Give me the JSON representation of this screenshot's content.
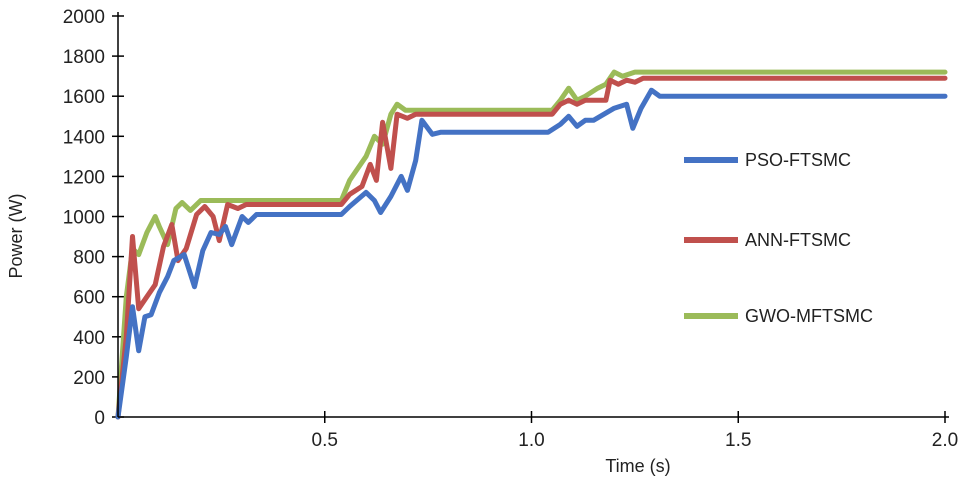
{
  "chart_data": {
    "type": "line",
    "xlabel": "Time (s)",
    "ylabel": "Power (W)",
    "xlim": [
      0,
      2.0
    ],
    "ylim": [
      0,
      2000
    ],
    "xticks": [
      0.5,
      1.0,
      1.5,
      2.0
    ],
    "xtick_labels": [
      "0.5",
      "1.0",
      "1.5",
      "2.0"
    ],
    "yticks": [
      0,
      200,
      400,
      600,
      800,
      1000,
      1200,
      1400,
      1600,
      1800,
      2000
    ],
    "ytick_labels": [
      "0",
      "200",
      "400",
      "600",
      "800",
      "1000",
      "1200",
      "1400",
      "1600",
      "1800",
      "2000"
    ],
    "grid": false,
    "legend_position": "right",
    "series": [
      {
        "name": "PSO-FTSMC",
        "color": "#4472C4",
        "points": [
          [
            0,
            0
          ],
          [
            0.02,
            300
          ],
          [
            0.035,
            550
          ],
          [
            0.05,
            330
          ],
          [
            0.065,
            500
          ],
          [
            0.08,
            510
          ],
          [
            0.1,
            620
          ],
          [
            0.12,
            700
          ],
          [
            0.135,
            780
          ],
          [
            0.16,
            810
          ],
          [
            0.185,
            650
          ],
          [
            0.205,
            830
          ],
          [
            0.225,
            920
          ],
          [
            0.245,
            910
          ],
          [
            0.26,
            950
          ],
          [
            0.275,
            860
          ],
          [
            0.3,
            1000
          ],
          [
            0.315,
            970
          ],
          [
            0.335,
            1010
          ],
          [
            0.4,
            1010
          ],
          [
            0.54,
            1010
          ],
          [
            0.56,
            1050
          ],
          [
            0.6,
            1120
          ],
          [
            0.62,
            1080
          ],
          [
            0.635,
            1020
          ],
          [
            0.66,
            1100
          ],
          [
            0.685,
            1200
          ],
          [
            0.7,
            1130
          ],
          [
            0.72,
            1280
          ],
          [
            0.735,
            1480
          ],
          [
            0.76,
            1410
          ],
          [
            0.78,
            1420
          ],
          [
            1.0,
            1420
          ],
          [
            1.04,
            1420
          ],
          [
            1.07,
            1460
          ],
          [
            1.09,
            1500
          ],
          [
            1.11,
            1450
          ],
          [
            1.13,
            1480
          ],
          [
            1.15,
            1480
          ],
          [
            1.2,
            1540
          ],
          [
            1.23,
            1560
          ],
          [
            1.245,
            1440
          ],
          [
            1.265,
            1540
          ],
          [
            1.29,
            1630
          ],
          [
            1.31,
            1600
          ],
          [
            2.0,
            1600
          ]
        ]
      },
      {
        "name": "ANN-FTSMC",
        "color": "#C0504D",
        "points": [
          [
            0,
            0
          ],
          [
            0.02,
            400
          ],
          [
            0.035,
            900
          ],
          [
            0.05,
            540
          ],
          [
            0.07,
            600
          ],
          [
            0.09,
            660
          ],
          [
            0.11,
            850
          ],
          [
            0.13,
            960
          ],
          [
            0.145,
            780
          ],
          [
            0.165,
            840
          ],
          [
            0.19,
            1010
          ],
          [
            0.21,
            1050
          ],
          [
            0.23,
            1000
          ],
          [
            0.245,
            880
          ],
          [
            0.265,
            1060
          ],
          [
            0.29,
            1040
          ],
          [
            0.31,
            1060
          ],
          [
            0.4,
            1060
          ],
          [
            0.54,
            1060
          ],
          [
            0.56,
            1110
          ],
          [
            0.59,
            1150
          ],
          [
            0.61,
            1260
          ],
          [
            0.625,
            1180
          ],
          [
            0.64,
            1470
          ],
          [
            0.66,
            1240
          ],
          [
            0.675,
            1510
          ],
          [
            0.7,
            1490
          ],
          [
            0.72,
            1510
          ],
          [
            1.0,
            1510
          ],
          [
            1.05,
            1510
          ],
          [
            1.07,
            1560
          ],
          [
            1.09,
            1580
          ],
          [
            1.11,
            1560
          ],
          [
            1.13,
            1580
          ],
          [
            1.16,
            1580
          ],
          [
            1.18,
            1580
          ],
          [
            1.19,
            1680
          ],
          [
            1.21,
            1660
          ],
          [
            1.23,
            1680
          ],
          [
            1.25,
            1670
          ],
          [
            1.27,
            1690
          ],
          [
            1.3,
            1690
          ],
          [
            2.0,
            1690
          ]
        ]
      },
      {
        "name": "GWO-MFTSMC",
        "color": "#9BBB59",
        "points": [
          [
            0,
            0
          ],
          [
            0.02,
            600
          ],
          [
            0.035,
            840
          ],
          [
            0.05,
            810
          ],
          [
            0.07,
            920
          ],
          [
            0.09,
            1000
          ],
          [
            0.1,
            950
          ],
          [
            0.12,
            860
          ],
          [
            0.14,
            1040
          ],
          [
            0.155,
            1070
          ],
          [
            0.175,
            1030
          ],
          [
            0.2,
            1080
          ],
          [
            0.22,
            1080
          ],
          [
            0.4,
            1080
          ],
          [
            0.54,
            1080
          ],
          [
            0.56,
            1180
          ],
          [
            0.58,
            1240
          ],
          [
            0.6,
            1300
          ],
          [
            0.62,
            1400
          ],
          [
            0.64,
            1360
          ],
          [
            0.66,
            1510
          ],
          [
            0.675,
            1560
          ],
          [
            0.695,
            1530
          ],
          [
            0.72,
            1530
          ],
          [
            1.0,
            1530
          ],
          [
            1.05,
            1530
          ],
          [
            1.07,
            1580
          ],
          [
            1.09,
            1640
          ],
          [
            1.11,
            1580
          ],
          [
            1.13,
            1600
          ],
          [
            1.16,
            1640
          ],
          [
            1.18,
            1660
          ],
          [
            1.2,
            1720
          ],
          [
            1.22,
            1700
          ],
          [
            1.25,
            1720
          ],
          [
            1.3,
            1720
          ],
          [
            2.0,
            1720
          ]
        ]
      }
    ]
  }
}
